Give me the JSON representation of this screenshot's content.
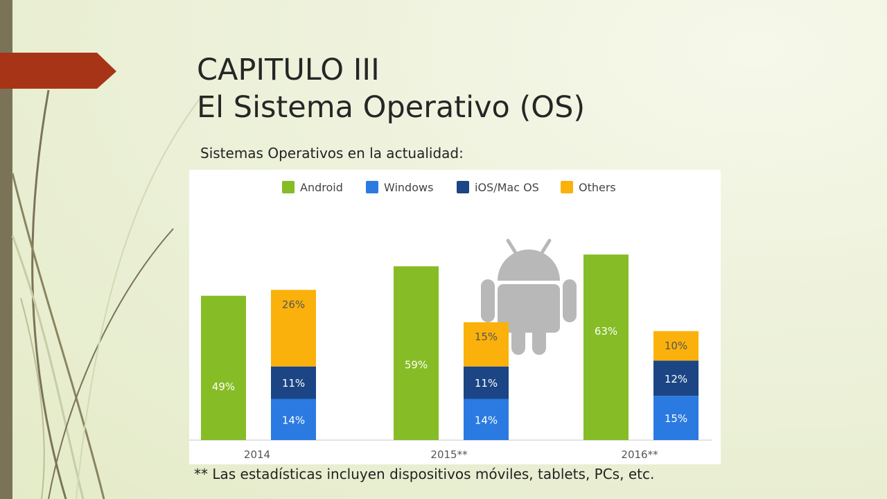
{
  "slide": {
    "title_line1": "CAPITULO III",
    "title_line2": "El Sistema Operativo (OS)",
    "subtitle": "Sistemas Operativos en la actualidad:",
    "footnote": "** Las estadísticas incluyen dispositivos móviles, tablets, PCs, etc."
  },
  "colors": {
    "accent_arrow": "#a83418",
    "left_bar": "#7a7358",
    "android": "#86bc25",
    "windows": "#2a7ae2",
    "ios": "#1b4584",
    "others": "#fbb10b",
    "watermark": "#b8b8b8"
  },
  "chart_data": {
    "type": "bar",
    "stacked_group": [
      "Windows",
      "iOS/Mac OS",
      "Others"
    ],
    "categories": [
      "2014",
      "2015**",
      "2016**"
    ],
    "series": [
      {
        "name": "Android",
        "values": [
          49,
          59,
          63
        ],
        "labels": [
          "49%",
          "59%",
          "63%"
        ]
      },
      {
        "name": "Windows",
        "values": [
          14,
          14,
          15
        ],
        "labels": [
          "14%",
          "14%",
          "15%"
        ]
      },
      {
        "name": "iOS/Mac OS",
        "values": [
          11,
          11,
          12
        ],
        "labels": [
          "11%",
          "11%",
          "12%"
        ]
      },
      {
        "name": "Others",
        "values": [
          26,
          15,
          10
        ],
        "labels": [
          "26%",
          "15%",
          "10%"
        ]
      }
    ],
    "legend_position": "top",
    "grid": false,
    "ylim": [
      0,
      64
    ],
    "background_icon": "android-robot-icon"
  }
}
